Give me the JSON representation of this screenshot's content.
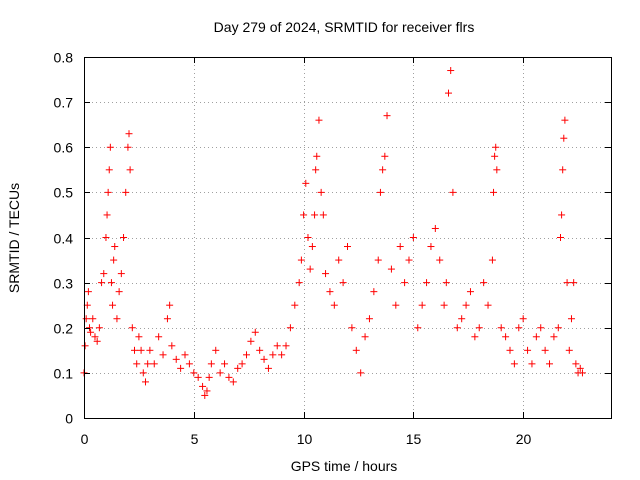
{
  "chart_data": {
    "type": "scatter",
    "title": "Day 279 of 2024, SRMTID for receiver flrs",
    "xlabel": "GPS time / hours",
    "ylabel": "SRMTID / TECUs",
    "xlim": [
      0,
      24
    ],
    "ylim": [
      0,
      0.8
    ],
    "xticks": [
      0,
      5,
      10,
      15,
      20
    ],
    "xtick_labels": [
      "0",
      "5",
      "10",
      "15",
      "20"
    ],
    "yticks": [
      0,
      0.1,
      0.2,
      0.3,
      0.4,
      0.5,
      0.6,
      0.7,
      0.8
    ],
    "ytick_labels": [
      "0",
      "0.1",
      "0.2",
      "0.3",
      "0.4",
      "0.5",
      "0.6",
      "0.7",
      "0.8"
    ],
    "grid": true,
    "marker": "+",
    "color": "#ff0000",
    "series": [
      {
        "name": "flrs",
        "x": [
          0.0,
          0.05,
          0.1,
          0.15,
          0.2,
          0.25,
          0.3,
          0.4,
          0.5,
          0.6,
          0.7,
          0.8,
          0.9,
          1.0,
          1.05,
          1.1,
          1.15,
          1.2,
          1.25,
          1.3,
          1.35,
          1.4,
          1.5,
          1.6,
          1.7,
          1.8,
          1.9,
          2.0,
          2.05,
          2.1,
          2.2,
          2.3,
          2.4,
          2.5,
          2.6,
          2.7,
          2.8,
          2.9,
          3.0,
          3.2,
          3.4,
          3.6,
          3.8,
          3.9,
          4.0,
          4.2,
          4.4,
          4.6,
          4.8,
          5.0,
          5.2,
          5.4,
          5.5,
          5.6,
          5.7,
          5.8,
          6.0,
          6.2,
          6.4,
          6.6,
          6.8,
          7.0,
          7.2,
          7.4,
          7.6,
          7.8,
          8.0,
          8.2,
          8.4,
          8.6,
          8.8,
          9.0,
          9.2,
          9.4,
          9.6,
          9.8,
          9.9,
          10.0,
          10.1,
          10.2,
          10.3,
          10.4,
          10.5,
          10.55,
          10.6,
          10.7,
          10.8,
          10.9,
          11.0,
          11.2,
          11.4,
          11.6,
          11.8,
          12.0,
          12.2,
          12.4,
          12.6,
          12.8,
          13.0,
          13.2,
          13.4,
          13.5,
          13.6,
          13.7,
          13.8,
          14.0,
          14.2,
          14.4,
          14.6,
          14.8,
          15.0,
          15.2,
          15.4,
          15.6,
          15.8,
          16.0,
          16.2,
          16.4,
          16.5,
          16.6,
          16.7,
          16.8,
          17.0,
          17.2,
          17.4,
          17.6,
          17.8,
          18.0,
          18.2,
          18.4,
          18.6,
          18.65,
          18.7,
          18.75,
          18.8,
          19.0,
          19.2,
          19.4,
          19.6,
          19.8,
          20.0,
          20.2,
          20.4,
          20.6,
          20.8,
          21.0,
          21.2,
          21.4,
          21.6,
          21.7,
          21.75,
          21.8,
          21.85,
          21.9,
          22.0,
          22.1,
          22.2,
          22.3,
          22.4,
          22.5,
          22.6,
          22.7
        ],
        "y": [
          0.1,
          0.16,
          0.22,
          0.25,
          0.28,
          0.2,
          0.19,
          0.22,
          0.18,
          0.17,
          0.2,
          0.3,
          0.32,
          0.4,
          0.45,
          0.5,
          0.55,
          0.6,
          0.3,
          0.25,
          0.35,
          0.38,
          0.22,
          0.28,
          0.32,
          0.4,
          0.5,
          0.6,
          0.63,
          0.55,
          0.2,
          0.15,
          0.12,
          0.18,
          0.15,
          0.1,
          0.08,
          0.12,
          0.15,
          0.12,
          0.18,
          0.14,
          0.22,
          0.25,
          0.16,
          0.13,
          0.11,
          0.14,
          0.12,
          0.1,
          0.09,
          0.07,
          0.05,
          0.06,
          0.09,
          0.12,
          0.15,
          0.1,
          0.12,
          0.09,
          0.08,
          0.11,
          0.12,
          0.14,
          0.17,
          0.19,
          0.15,
          0.13,
          0.11,
          0.14,
          0.16,
          0.14,
          0.16,
          0.2,
          0.25,
          0.3,
          0.35,
          0.45,
          0.52,
          0.4,
          0.33,
          0.38,
          0.45,
          0.55,
          0.58,
          0.66,
          0.5,
          0.45,
          0.32,
          0.28,
          0.25,
          0.35,
          0.3,
          0.38,
          0.2,
          0.15,
          0.1,
          0.18,
          0.22,
          0.28,
          0.35,
          0.5,
          0.55,
          0.58,
          0.67,
          0.33,
          0.25,
          0.38,
          0.3,
          0.35,
          0.4,
          0.2,
          0.25,
          0.3,
          0.38,
          0.42,
          0.35,
          0.25,
          0.3,
          0.72,
          0.77,
          0.5,
          0.2,
          0.22,
          0.25,
          0.28,
          0.18,
          0.2,
          0.3,
          0.25,
          0.35,
          0.5,
          0.58,
          0.6,
          0.55,
          0.2,
          0.18,
          0.15,
          0.12,
          0.2,
          0.22,
          0.15,
          0.12,
          0.18,
          0.2,
          0.15,
          0.12,
          0.18,
          0.2,
          0.4,
          0.45,
          0.55,
          0.62,
          0.66,
          0.3,
          0.15,
          0.22,
          0.3,
          0.12,
          0.1,
          0.11,
          0.1
        ]
      }
    ]
  }
}
